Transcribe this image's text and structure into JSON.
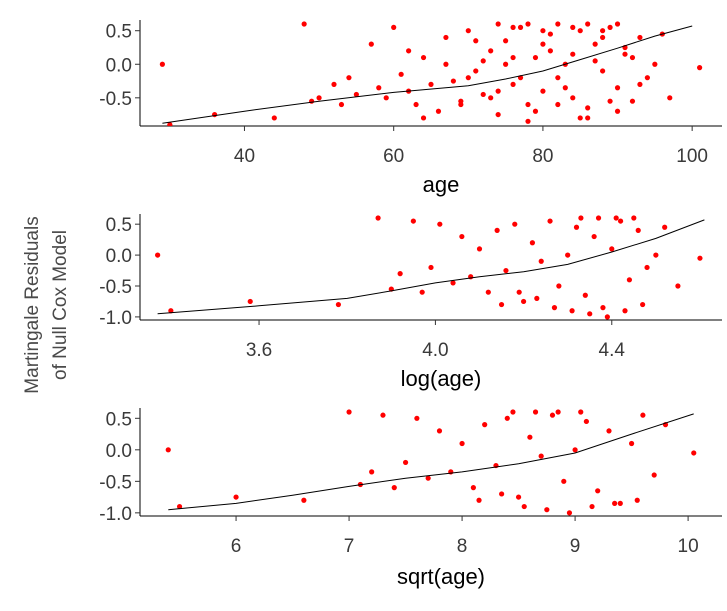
{
  "figure": {
    "shared_ylabel_line1": "Martingale Residuals",
    "shared_ylabel_line2": "of Null Cox Model",
    "point_color": "#ff0000",
    "line_color": "#000000"
  },
  "chart_data": [
    {
      "type": "scatter",
      "xlabel": "age",
      "xlim": [
        26,
        104
      ],
      "ylim": [
        -0.92,
        0.6
      ],
      "xticks": [
        40,
        60,
        80,
        100
      ],
      "xtick_labels": [
        "40",
        "60",
        "80",
        "100"
      ],
      "yticks": [
        0.5,
        0.0,
        -0.5
      ],
      "ytick_labels": [
        "0.5",
        "0.0",
        "-0.5"
      ],
      "grid": false,
      "legend": "none",
      "series": [
        {
          "kind": "points",
          "x": [
            29,
            30,
            36,
            44,
            48,
            49,
            50,
            52,
            53,
            54,
            55,
            57,
            58,
            59,
            60,
            61,
            62,
            63,
            64,
            65,
            66,
            67,
            68,
            69,
            70,
            71,
            72,
            73,
            74,
            75,
            76,
            77,
            78,
            79,
            80,
            81,
            82,
            83,
            84,
            85,
            86,
            87,
            88,
            89,
            90,
            91,
            92,
            93,
            94,
            95,
            96,
            97,
            101,
            62,
            64,
            67,
            69,
            71,
            73,
            75,
            77,
            79,
            81,
            83,
            85,
            87,
            89,
            91,
            93,
            70,
            72,
            74,
            76,
            78,
            80,
            82,
            84,
            86,
            88,
            90,
            92,
            74,
            76,
            78,
            80,
            82,
            84,
            86,
            88,
            90
          ],
          "y": [
            0.0,
            -0.9,
            -0.75,
            -0.8,
            0.6,
            -0.55,
            -0.5,
            -0.3,
            -0.6,
            -0.2,
            -0.45,
            0.3,
            -0.35,
            -0.5,
            0.55,
            -0.15,
            -0.4,
            -0.6,
            0.1,
            -0.3,
            -0.7,
            0.4,
            -0.25,
            -0.55,
            0.5,
            -0.1,
            -0.45,
            0.2,
            -0.75,
            0.35,
            -0.3,
            0.55,
            -0.6,
            0.1,
            -0.4,
            0.45,
            -0.2,
            0.0,
            -0.5,
            0.5,
            -0.65,
            0.3,
            -0.1,
            0.55,
            -0.35,
            0.15,
            -0.55,
            0.4,
            -0.2,
            0.0,
            0.45,
            -0.5,
            -0.05,
            0.2,
            -0.8,
            0.0,
            -0.6,
            0.35,
            -0.5,
            0.0,
            -0.2,
            -0.7,
            0.2,
            -0.35,
            -0.8,
            0.05,
            -0.55,
            0.25,
            -0.3,
            -0.2,
            0.05,
            -0.4,
            0.1,
            -0.85,
            0.3,
            -0.6,
            0.15,
            -0.8,
            0.4,
            -0.7,
            0.1,
            0.6,
            0.55,
            0.6,
            0.5,
            0.6,
            0.55,
            0.6,
            0.5,
            0.6
          ]
        },
        {
          "kind": "smooth",
          "x": [
            29,
            40,
            50,
            60,
            70,
            75,
            80,
            85,
            90,
            95,
            100
          ],
          "y": [
            -0.88,
            -0.7,
            -0.55,
            -0.42,
            -0.32,
            -0.22,
            -0.1,
            0.07,
            0.24,
            0.42,
            0.57
          ]
        }
      ]
    },
    {
      "type": "scatter",
      "xlabel": "log(age)",
      "xlim": [
        3.33,
        4.65
      ],
      "ylim": [
        -1.05,
        0.6
      ],
      "xticks": [
        3.6,
        4.0,
        4.4
      ],
      "xtick_labels": [
        "3.6",
        "4.0",
        "4.4"
      ],
      "yticks": [
        0.5,
        0.0,
        -0.5,
        -1.0
      ],
      "ytick_labels": [
        "0.5",
        "0.0",
        "-0.5",
        "-1.0"
      ],
      "grid": false,
      "legend": "none",
      "series": [
        {
          "kind": "points",
          "x": [
            3.37,
            3.4,
            3.58,
            3.78,
            3.87,
            3.9,
            3.92,
            3.95,
            3.97,
            3.99,
            4.01,
            4.04,
            4.06,
            4.08,
            4.1,
            4.12,
            4.14,
            4.16,
            4.18,
            4.2,
            4.22,
            4.24,
            4.26,
            4.28,
            4.3,
            4.32,
            4.34,
            4.36,
            4.38,
            4.4,
            4.42,
            4.44,
            4.46,
            4.48,
            4.5,
            4.52,
            4.55,
            4.6,
            4.15,
            4.19,
            4.23,
            4.27,
            4.31,
            4.35,
            4.39,
            4.43,
            4.47,
            4.33,
            4.37,
            4.41,
            4.45
          ],
          "y": [
            0.0,
            -0.9,
            -0.75,
            -0.8,
            0.6,
            -0.55,
            -0.3,
            0.55,
            -0.6,
            -0.2,
            0.5,
            -0.45,
            0.3,
            -0.35,
            0.1,
            -0.6,
            0.4,
            -0.25,
            0.5,
            -0.75,
            0.2,
            -0.1,
            0.55,
            -0.5,
            0.0,
            0.45,
            -0.65,
            0.3,
            -0.85,
            0.1,
            0.55,
            -0.4,
            0.4,
            -0.2,
            0.0,
            0.45,
            -0.5,
            -0.05,
            -0.8,
            -0.6,
            -0.7,
            -0.85,
            -0.9,
            -0.95,
            -1.0,
            -0.9,
            -0.8,
            0.6,
            0.6,
            0.6,
            0.6
          ]
        },
        {
          "kind": "smooth",
          "x": [
            3.37,
            3.6,
            3.8,
            3.9,
            4.0,
            4.1,
            4.2,
            4.3,
            4.4,
            4.5,
            4.61
          ],
          "y": [
            -0.95,
            -0.82,
            -0.7,
            -0.58,
            -0.45,
            -0.35,
            -0.27,
            -0.15,
            0.05,
            0.27,
            0.57
          ]
        }
      ]
    },
    {
      "type": "scatter",
      "xlabel": "sqrt(age)",
      "xlim": [
        5.15,
        10.3
      ],
      "ylim": [
        -1.05,
        0.6
      ],
      "xticks": [
        6,
        7,
        8,
        9,
        10
      ],
      "xtick_labels": [
        "6",
        "7",
        "8",
        "9",
        "10"
      ],
      "yticks": [
        0.5,
        0.0,
        -0.5,
        -1.0
      ],
      "ytick_labels": [
        "0.5",
        "0.0",
        "-0.5",
        "-1.0"
      ],
      "grid": false,
      "legend": "none",
      "series": [
        {
          "kind": "points",
          "x": [
            5.4,
            5.5,
            6.0,
            6.6,
            7.0,
            7.1,
            7.2,
            7.3,
            7.4,
            7.5,
            7.6,
            7.7,
            7.8,
            7.9,
            8.0,
            8.1,
            8.2,
            8.3,
            8.4,
            8.5,
            8.6,
            8.7,
            8.8,
            8.9,
            9.0,
            9.1,
            9.2,
            9.3,
            9.4,
            9.5,
            9.6,
            9.7,
            9.8,
            10.05,
            8.15,
            8.35,
            8.55,
            8.75,
            8.95,
            9.15,
            9.35,
            9.55,
            8.45,
            8.65,
            8.85,
            9.05
          ],
          "y": [
            0.0,
            -0.9,
            -0.75,
            -0.8,
            0.6,
            -0.55,
            -0.35,
            0.55,
            -0.6,
            -0.2,
            0.5,
            -0.45,
            0.3,
            -0.35,
            0.1,
            -0.6,
            0.4,
            -0.25,
            0.5,
            -0.75,
            0.2,
            -0.1,
            0.55,
            -0.5,
            0.0,
            0.45,
            -0.65,
            0.3,
            -0.85,
            0.1,
            0.55,
            -0.4,
            0.4,
            -0.05,
            -0.8,
            -0.7,
            -0.9,
            -0.95,
            -1.0,
            -0.9,
            -0.85,
            -0.8,
            0.6,
            0.6,
            0.6,
            0.6
          ]
        },
        {
          "kind": "smooth",
          "x": [
            5.4,
            6.0,
            6.5,
            7.0,
            7.5,
            8.0,
            8.5,
            9.0,
            9.5,
            10.05
          ],
          "y": [
            -0.95,
            -0.85,
            -0.72,
            -0.58,
            -0.45,
            -0.35,
            -0.22,
            -0.05,
            0.25,
            0.57
          ]
        }
      ]
    }
  ]
}
